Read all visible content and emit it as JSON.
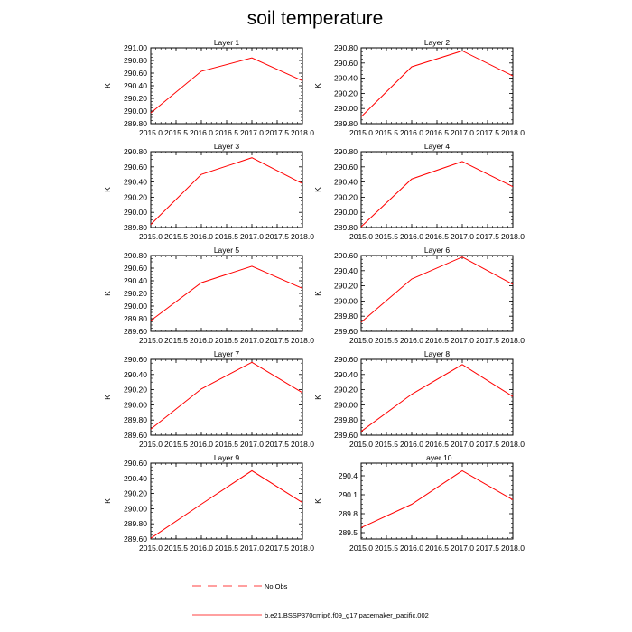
{
  "figure": {
    "title": "soil temperature"
  },
  "colors": {
    "series": "#ff0000",
    "axis": "#000000",
    "background": "#ffffff"
  },
  "legend": {
    "entries": [
      {
        "label": "No Obs",
        "style": "dashed"
      },
      {
        "label": "b.e21.BSSP370cmip6.f09_g17.pacemaker_pacific.002",
        "style": "solid"
      }
    ]
  },
  "chart_data": [
    {
      "type": "line",
      "title": "Layer 1",
      "ylabel": "K",
      "x": [
        2015.0,
        2016.0,
        2017.0,
        2018.0
      ],
      "y": [
        289.97,
        290.63,
        290.84,
        290.48
      ],
      "xlim": [
        2015.0,
        2018.0
      ],
      "ylim": [
        289.8,
        291.0
      ],
      "xticks": [
        "2015.0",
        "2015.5",
        "2016.0",
        "2016.5",
        "2017.0",
        "2017.5",
        "2018.0"
      ],
      "yticks": [
        "289.80",
        "290.00",
        "290.20",
        "290.40",
        "290.60",
        "290.80",
        "291.00"
      ]
    },
    {
      "type": "line",
      "title": "Layer 2",
      "ylabel": "K",
      "x": [
        2015.0,
        2016.0,
        2017.0,
        2018.0
      ],
      "y": [
        289.89,
        290.55,
        290.76,
        290.43
      ],
      "xlim": [
        2015.0,
        2018.0
      ],
      "ylim": [
        289.8,
        290.8
      ],
      "xticks": [
        "2015.0",
        "2015.5",
        "2016.0",
        "2016.5",
        "2017.0",
        "2017.5",
        "2018.0"
      ],
      "yticks": [
        "289.80",
        "290.00",
        "290.20",
        "290.40",
        "290.60",
        "290.80"
      ]
    },
    {
      "type": "line",
      "title": "Layer 3",
      "ylabel": "K",
      "x": [
        2015.0,
        2016.0,
        2017.0,
        2018.0
      ],
      "y": [
        289.84,
        290.5,
        290.72,
        290.38
      ],
      "xlim": [
        2015.0,
        2018.0
      ],
      "ylim": [
        289.8,
        290.8
      ],
      "xticks": [
        "2015.0",
        "2015.5",
        "2016.0",
        "2016.5",
        "2017.0",
        "2017.5",
        "2018.0"
      ],
      "yticks": [
        "289.80",
        "290.00",
        "290.20",
        "290.40",
        "290.60",
        "290.80"
      ]
    },
    {
      "type": "line",
      "title": "Layer 4",
      "ylabel": "K",
      "x": [
        2015.0,
        2016.0,
        2017.0,
        2018.0
      ],
      "y": [
        289.81,
        290.44,
        290.67,
        290.34
      ],
      "xlim": [
        2015.0,
        2018.0
      ],
      "ylim": [
        289.8,
        290.8
      ],
      "xticks": [
        "2015.0",
        "2015.5",
        "2016.0",
        "2016.5",
        "2017.0",
        "2017.5",
        "2018.0"
      ],
      "yticks": [
        "289.80",
        "290.00",
        "290.20",
        "290.40",
        "290.60",
        "290.80"
      ]
    },
    {
      "type": "line",
      "title": "Layer 5",
      "ylabel": "K",
      "x": [
        2015.0,
        2016.0,
        2017.0,
        2018.0
      ],
      "y": [
        289.77,
        290.37,
        290.63,
        290.28
      ],
      "xlim": [
        2015.0,
        2018.0
      ],
      "ylim": [
        289.6,
        290.8
      ],
      "xticks": [
        "2015.0",
        "2015.5",
        "2016.0",
        "2016.5",
        "2017.0",
        "2017.5",
        "2018.0"
      ],
      "yticks": [
        "289.60",
        "289.80",
        "290.00",
        "290.20",
        "290.40",
        "290.60",
        "290.80"
      ]
    },
    {
      "type": "line",
      "title": "Layer 6",
      "ylabel": "K",
      "x": [
        2015.0,
        2016.0,
        2017.0,
        2018.0
      ],
      "y": [
        289.72,
        290.29,
        290.58,
        290.22
      ],
      "xlim": [
        2015.0,
        2018.0
      ],
      "ylim": [
        289.6,
        290.6
      ],
      "xticks": [
        "2015.0",
        "2015.5",
        "2016.0",
        "2016.5",
        "2017.0",
        "2017.5",
        "2018.0"
      ],
      "yticks": [
        "289.60",
        "289.80",
        "290.00",
        "290.20",
        "290.40",
        "290.60"
      ]
    },
    {
      "type": "line",
      "title": "Layer 7",
      "ylabel": "K",
      "x": [
        2015.0,
        2016.0,
        2017.0,
        2018.0
      ],
      "y": [
        289.68,
        290.21,
        290.56,
        290.16
      ],
      "xlim": [
        2015.0,
        2018.0
      ],
      "ylim": [
        289.6,
        290.6
      ],
      "xticks": [
        "2015.0",
        "2015.5",
        "2016.0",
        "2016.5",
        "2017.0",
        "2017.5",
        "2018.0"
      ],
      "yticks": [
        "289.60",
        "289.80",
        "290.00",
        "290.20",
        "290.40",
        "290.60"
      ]
    },
    {
      "type": "line",
      "title": "Layer 8",
      "ylabel": "K",
      "x": [
        2015.0,
        2016.0,
        2017.0,
        2018.0
      ],
      "y": [
        289.65,
        290.14,
        290.53,
        290.11
      ],
      "xlim": [
        2015.0,
        2018.0
      ],
      "ylim": [
        289.6,
        290.6
      ],
      "xticks": [
        "2015.0",
        "2015.5",
        "2016.0",
        "2016.5",
        "2017.0",
        "2017.5",
        "2018.0"
      ],
      "yticks": [
        "289.60",
        "289.80",
        "290.00",
        "290.20",
        "290.40",
        "290.60"
      ]
    },
    {
      "type": "line",
      "title": "Layer 9",
      "ylabel": "K",
      "x": [
        2015.0,
        2016.0,
        2017.0,
        2018.0
      ],
      "y": [
        289.61,
        290.06,
        290.5,
        290.08
      ],
      "xlim": [
        2015.0,
        2018.0
      ],
      "ylim": [
        289.6,
        290.6
      ],
      "xticks": [
        "2015.0",
        "2015.5",
        "2016.0",
        "2016.5",
        "2017.0",
        "2017.5",
        "2018.0"
      ],
      "yticks": [
        "289.60",
        "289.80",
        "290.00",
        "290.20",
        "290.40",
        "290.60"
      ]
    },
    {
      "type": "line",
      "title": "Layer 10",
      "ylabel": "K",
      "x": [
        2015.0,
        2016.0,
        2017.0,
        2018.0
      ],
      "y": [
        289.58,
        289.95,
        290.48,
        290.02
      ],
      "xlim": [
        2015.0,
        2018.0
      ],
      "ylim": [
        289.4,
        290.6
      ],
      "xticks": [
        "2015.0",
        "2015.5",
        "2016.0",
        "2016.5",
        "2017.0",
        "2017.5",
        "2018.0"
      ],
      "yticks": [
        "289.5",
        "289.8",
        "290.1",
        "290.4"
      ]
    }
  ]
}
